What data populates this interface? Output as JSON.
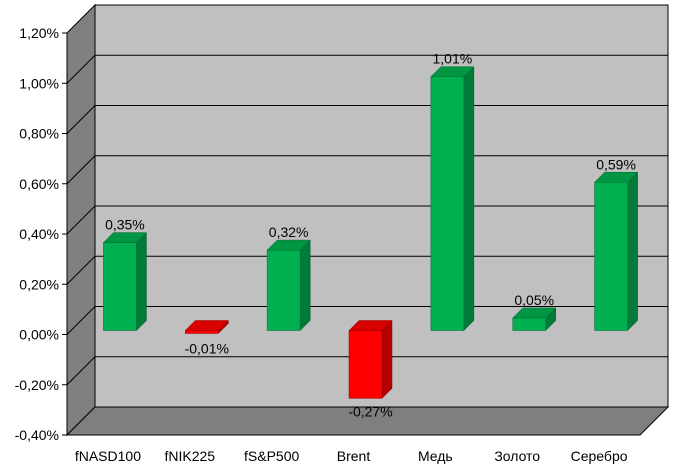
{
  "chart_data": {
    "type": "bar",
    "style": "3d-column",
    "categories": [
      "fNASD100",
      "fNIK225",
      "fS&P500",
      "Brent",
      "Медь",
      "Золото",
      "Серебро"
    ],
    "values": [
      0.35,
      -0.01,
      0.32,
      -0.27,
      1.01,
      0.05,
      0.59
    ],
    "data_labels": [
      "0,35%",
      "-0,01%",
      "0,32%",
      "-0,27%",
      "1,01%",
      "0,05%",
      "0,59%"
    ],
    "y_ticks": [
      -0.4,
      -0.2,
      0.0,
      0.2,
      0.4,
      0.6,
      0.8,
      1.0,
      1.2
    ],
    "y_tick_labels": [
      "-0,40%",
      "-0,20%",
      "0,00%",
      "0,20%",
      "0,40%",
      "0,60%",
      "0,80%",
      "1,00%",
      "1,20%"
    ],
    "ylim": [
      -0.4,
      1.2
    ],
    "grid": true,
    "legend": "none",
    "colors": {
      "positive": "#00b050",
      "negative": "#ff0000",
      "back_wall": "#c0c0c0",
      "side_wall": "#808080",
      "floor": "#7f7f7f"
    }
  }
}
